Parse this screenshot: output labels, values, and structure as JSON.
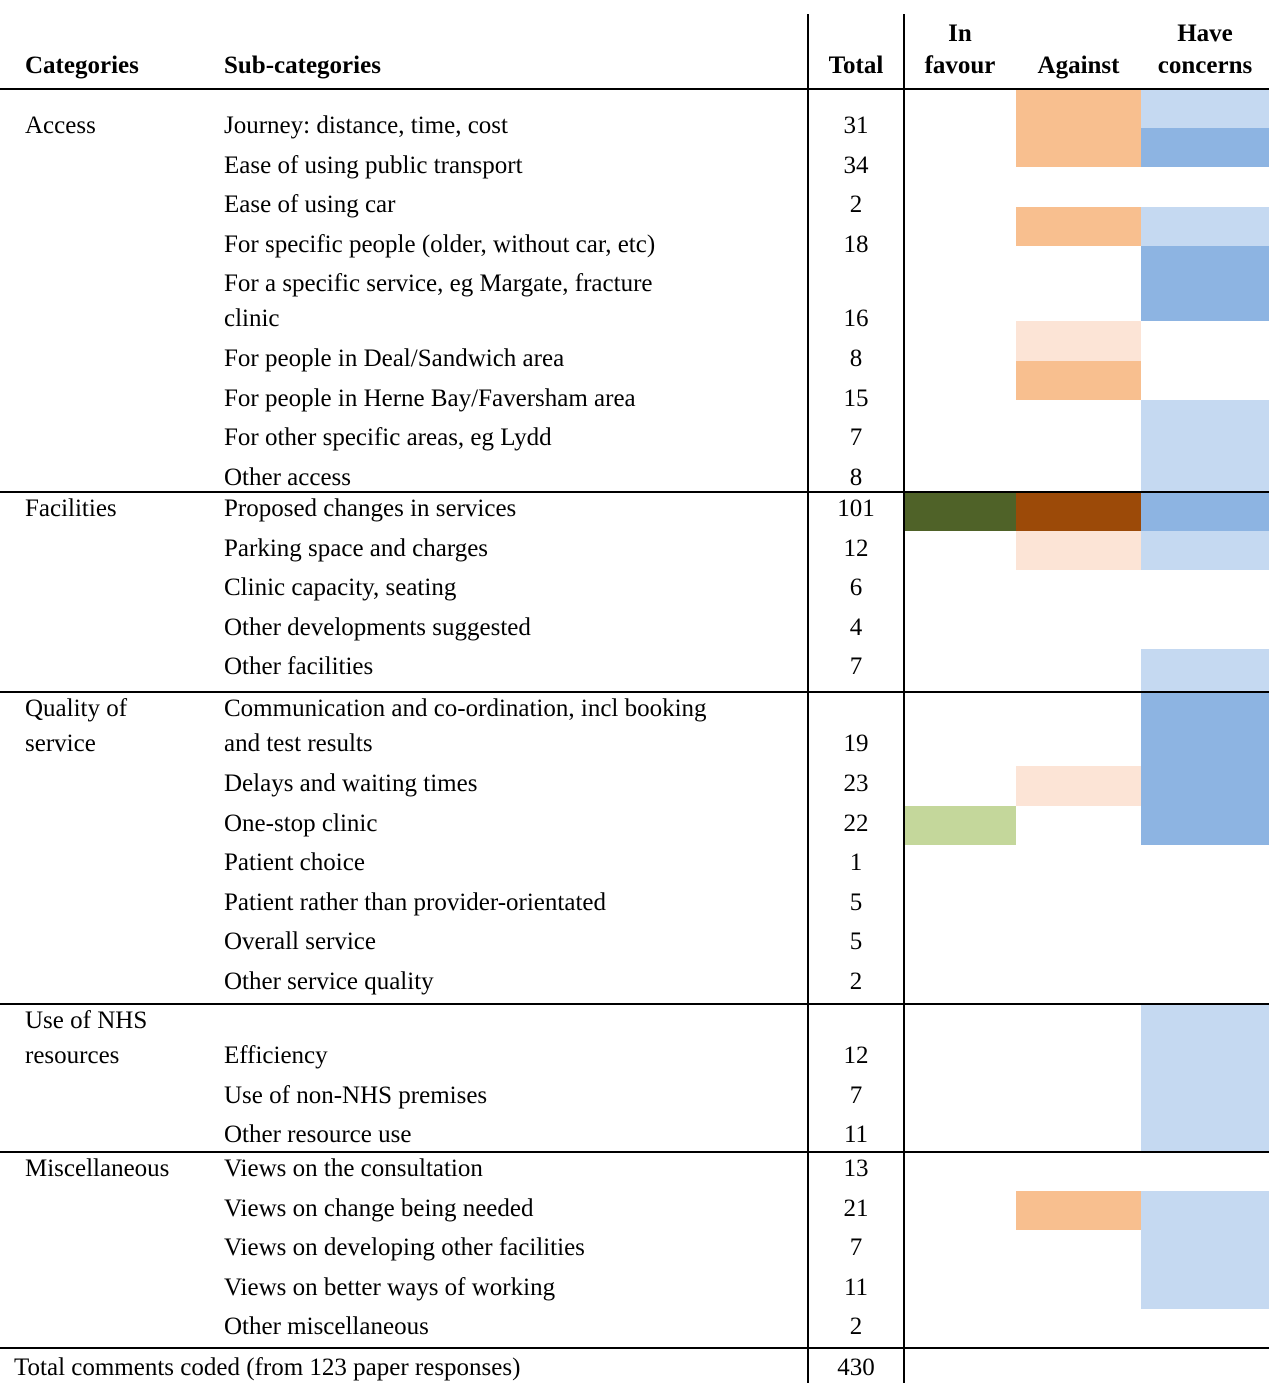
{
  "colors": {
    "against_light": "#fce4d6",
    "against_medium": "#f8bf8f",
    "against_strong": "#9c4a08",
    "favour_light": "#c4d79b",
    "favour_strong": "#4f6228",
    "concern_light": "#c5d9f1",
    "concern_medium": "#8db4e2"
  },
  "header": {
    "categories": "Categories",
    "subcategories": "Sub-categories",
    "total": "Total",
    "in_favour_line1": "In",
    "in_favour_line2": "favour",
    "against": "Against",
    "concerns_line1": "Have",
    "concerns_line2": "concerns"
  },
  "sections": [
    {
      "label": [
        "Access"
      ],
      "rows": [
        {
          "sub": [
            "Journey: distance, time, cost"
          ],
          "total": "31",
          "favour": "none",
          "against": "medium",
          "concern": "light"
        },
        {
          "sub": [
            "Ease of using public transport"
          ],
          "total": "34",
          "favour": "none",
          "against": "medium",
          "concern": "medium"
        },
        {
          "sub": [
            "Ease of using car"
          ],
          "total": "2",
          "favour": "none",
          "against": "none",
          "concern": "none"
        },
        {
          "sub": [
            "For specific people (older, without car, etc)"
          ],
          "total": "18",
          "favour": "none",
          "against": "medium",
          "concern": "light"
        },
        {
          "sub": [
            "For a specific service, eg Margate, fracture",
            "clinic"
          ],
          "total": "16",
          "favour": "none",
          "against": "none",
          "concern": "medium"
        },
        {
          "sub": [
            "For people in Deal/Sandwich area"
          ],
          "total": "8",
          "favour": "none",
          "against": "light",
          "concern": "none"
        },
        {
          "sub": [
            "For people in Herne Bay/Faversham area"
          ],
          "total": "15",
          "favour": "none",
          "against": "medium",
          "concern": "none"
        },
        {
          "sub": [
            "For other specific areas, eg Lydd"
          ],
          "total": "7",
          "favour": "none",
          "against": "none",
          "concern": "light"
        },
        {
          "sub": [
            "Other access"
          ],
          "total": "8",
          "favour": "none",
          "against": "none",
          "concern": "light"
        }
      ]
    },
    {
      "label": [
        "Facilities"
      ],
      "rows": [
        {
          "sub": [
            "Proposed changes in services"
          ],
          "total": "101",
          "favour": "strong",
          "against": "strong",
          "concern": "medium"
        },
        {
          "sub": [
            "Parking space and charges"
          ],
          "total": "12",
          "favour": "none",
          "against": "light",
          "concern": "light"
        },
        {
          "sub": [
            "Clinic capacity, seating"
          ],
          "total": "6",
          "favour": "none",
          "against": "none",
          "concern": "none"
        },
        {
          "sub": [
            "Other developments suggested"
          ],
          "total": "4",
          "favour": "none",
          "against": "none",
          "concern": "none"
        },
        {
          "sub": [
            "Other facilities"
          ],
          "total": "7",
          "favour": "none",
          "against": "none",
          "concern": "light"
        }
      ]
    },
    {
      "label": [
        "Quality of",
        "service"
      ],
      "rows": [
        {
          "sub": [
            "Communication and co-ordination, incl booking",
            "and test results"
          ],
          "total": "19",
          "favour": "none",
          "against": "none",
          "concern": "medium"
        },
        {
          "sub": [
            "Delays and waiting times"
          ],
          "total": "23",
          "favour": "none",
          "against": "light",
          "concern": "medium"
        },
        {
          "sub": [
            "One-stop clinic"
          ],
          "total": "22",
          "favour": "light",
          "against": "none",
          "concern": "medium"
        },
        {
          "sub": [
            "Patient choice"
          ],
          "total": "1",
          "favour": "none",
          "against": "none",
          "concern": "none"
        },
        {
          "sub": [
            "Patient rather than provider-orientated"
          ],
          "total": "5",
          "favour": "none",
          "against": "none",
          "concern": "none"
        },
        {
          "sub": [
            "Overall service"
          ],
          "total": "5",
          "favour": "none",
          "against": "none",
          "concern": "none"
        },
        {
          "sub": [
            "Other service quality"
          ],
          "total": "2",
          "favour": "none",
          "against": "none",
          "concern": "none"
        }
      ]
    },
    {
      "label": [
        "Use of NHS",
        "resources"
      ],
      "rows": [
        {
          "sub": [
            "Efficiency"
          ],
          "total": "12",
          "favour": "none",
          "against": "none",
          "concern": "light"
        },
        {
          "sub": [
            "Use of non-NHS premises"
          ],
          "total": "7",
          "favour": "none",
          "against": "none",
          "concern": "light"
        },
        {
          "sub": [
            "Other resource use"
          ],
          "total": "11",
          "favour": "none",
          "against": "none",
          "concern": "light"
        }
      ]
    },
    {
      "label": [
        "Miscellaneous"
      ],
      "rows": [
        {
          "sub": [
            "Views on the consultation"
          ],
          "total": "13",
          "favour": "none",
          "against": "none",
          "concern": "none"
        },
        {
          "sub": [
            "Views on change being needed"
          ],
          "total": "21",
          "favour": "none",
          "against": "medium",
          "concern": "light"
        },
        {
          "sub": [
            "Views on developing other facilities"
          ],
          "total": "7",
          "favour": "none",
          "against": "none",
          "concern": "light"
        },
        {
          "sub": [
            "Views on better ways of working"
          ],
          "total": "11",
          "favour": "none",
          "against": "none",
          "concern": "light"
        },
        {
          "sub": [
            "Other miscellaneous"
          ],
          "total": "2",
          "favour": "none",
          "against": "none",
          "concern": "none"
        }
      ]
    }
  ],
  "footer": {
    "label": "Total comments coded (from 123 paper responses)",
    "total": "430"
  }
}
